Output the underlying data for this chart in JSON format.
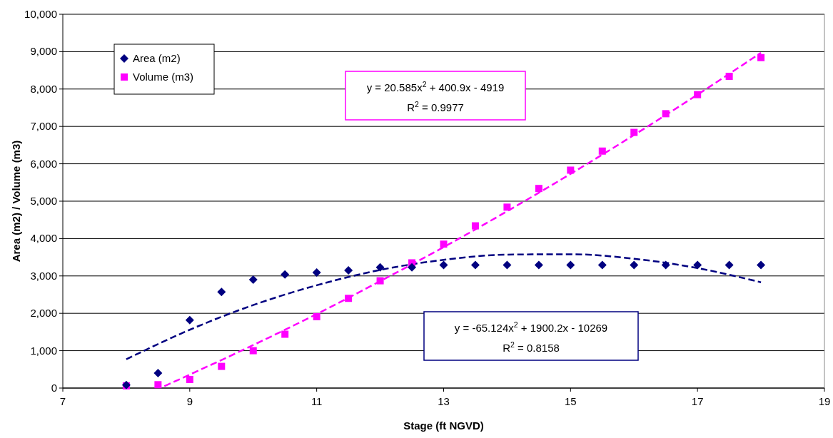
{
  "chart_data": {
    "type": "scatter",
    "xlabel": "Stage (ft NGVD)",
    "ylabel": "Area (m2) / Volume (m3)",
    "xlim": [
      7,
      19
    ],
    "xticks": [
      7,
      9,
      11,
      13,
      15,
      17,
      19
    ],
    "ylim": [
      0,
      10000
    ],
    "yticks": [
      {
        "value": 0,
        "label": "0"
      },
      {
        "value": 1000,
        "label": "1,000"
      },
      {
        "value": 2000,
        "label": "2,000"
      },
      {
        "value": 3000,
        "label": "3,000"
      },
      {
        "value": 4000,
        "label": "4,000"
      },
      {
        "value": 5000,
        "label": "5,000"
      },
      {
        "value": 6000,
        "label": "6,000"
      },
      {
        "value": 7000,
        "label": "7,000"
      },
      {
        "value": 8000,
        "label": "8,000"
      },
      {
        "value": 9000,
        "label": "9,000"
      },
      {
        "value": 10000,
        "label": "10,000"
      }
    ],
    "grid": "y",
    "legend": "top left",
    "x": [
      8,
      8.5,
      9,
      9.5,
      10,
      10.5,
      11,
      11.5,
      12,
      12.5,
      13,
      13.5,
      14,
      14.5,
      15,
      15.5,
      16,
      16.5,
      17,
      17.5,
      18
    ],
    "series": [
      {
        "name": "Area (m2)",
        "marker": "diamond",
        "color": "#000080",
        "values": [
          80,
          400,
          1820,
          2570,
          2900,
          3040,
          3090,
          3150,
          3230,
          3230,
          3290,
          3290,
          3290,
          3290,
          3290,
          3290,
          3290,
          3290,
          3290,
          3290,
          3290
        ]
      },
      {
        "name": "Volume (m3)",
        "marker": "square",
        "color": "#ff00ff",
        "values": [
          60,
          90,
          230,
          580,
          1000,
          1440,
          1910,
          2400,
          2870,
          3350,
          3850,
          4340,
          4840,
          5340,
          5830,
          6340,
          6840,
          7340,
          7850,
          8340,
          8840
        ]
      },
      {
        "type": "line",
        "marker": "none",
        "line_style": "dashed",
        "color": "#ff00ff",
        "x": [
          8.6,
          9,
          10,
          11,
          12,
          13,
          14,
          15,
          16,
          17,
          18
        ],
        "values": [
          50,
          360,
          1150,
          1980,
          2860,
          3770,
          4730,
          5730,
          6770,
          7850,
          8970
        ]
      },
      {
        "type": "line",
        "marker": "none",
        "line_style": "dashed",
        "color": "#000080",
        "x": [
          8,
          9,
          10,
          11,
          12,
          13,
          14,
          15,
          16,
          17,
          18
        ],
        "values": [
          770,
          1560,
          2220,
          2750,
          3160,
          3430,
          3570,
          3580,
          3460,
          3210,
          2830
        ]
      }
    ],
    "annotations": [
      "y = 20.585x$^{2}$ + 400.9x - 4919",
      "R$^{2}$ = 0.9977",
      "y = -65.124x$^{2}$ + 1900.2x - 10269",
      "R$^{2}$ = 0.8158"
    ]
  }
}
